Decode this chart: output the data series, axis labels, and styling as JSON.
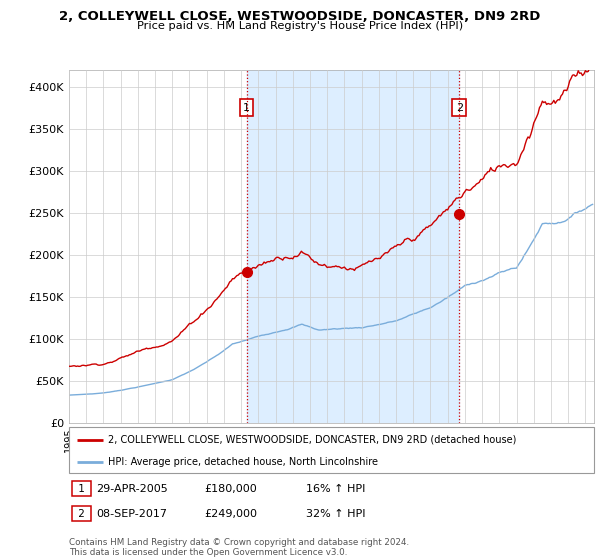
{
  "title1": "2, COLLEYWELL CLOSE, WESTWOODSIDE, DONCASTER, DN9 2RD",
  "title2": "Price paid vs. HM Land Registry's House Price Index (HPI)",
  "ylabel_ticks": [
    "£0",
    "£50K",
    "£100K",
    "£150K",
    "£200K",
    "£250K",
    "£300K",
    "£350K",
    "£400K"
  ],
  "ytick_values": [
    0,
    50000,
    100000,
    150000,
    200000,
    250000,
    300000,
    350000,
    400000
  ],
  "ylim": [
    0,
    420000
  ],
  "xlim_start": 1995.0,
  "xlim_end": 2025.5,
  "sale1_x": 2005.32,
  "sale1_y": 180000,
  "sale2_x": 2017.68,
  "sale2_y": 249000,
  "legend_line1": "2, COLLEYWELL CLOSE, WESTWOODSIDE, DONCASTER, DN9 2RD (detached house)",
  "legend_line2": "HPI: Average price, detached house, North Lincolnshire",
  "ann1_label": "1",
  "ann1_date": "29-APR-2005",
  "ann1_price": "£180,000",
  "ann1_hpi": "16% ↑ HPI",
  "ann2_label": "2",
  "ann2_date": "08-SEP-2017",
  "ann2_price": "£249,000",
  "ann2_hpi": "32% ↑ HPI",
  "footer": "Contains HM Land Registry data © Crown copyright and database right 2024.\nThis data is licensed under the Open Government Licence v3.0.",
  "line_red": "#cc0000",
  "line_blue": "#7aaddb",
  "shade_color": "#ddeeff",
  "bg_color": "#ffffff",
  "grid_color": "#cccccc"
}
